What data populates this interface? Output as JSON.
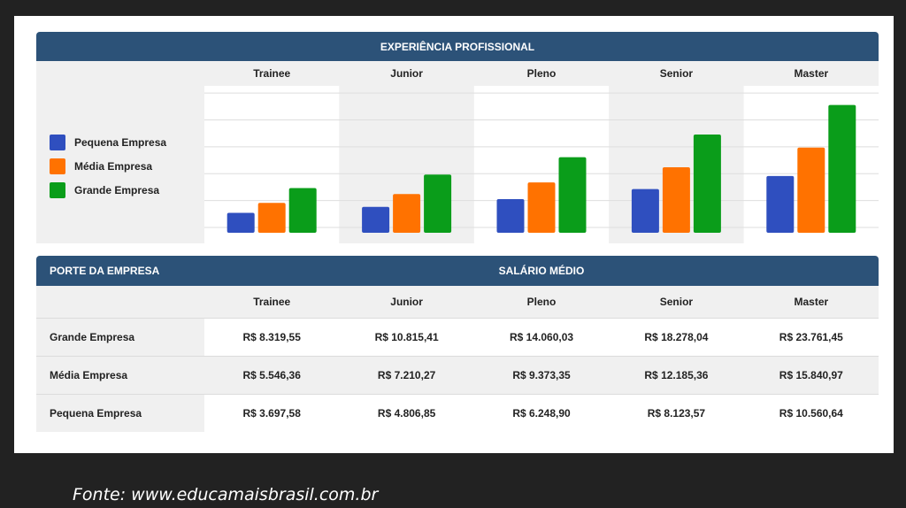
{
  "chart_header": "EXPERIÊNCIA PROFISSIONAL",
  "table_header": {
    "left": "PORTE DA EMPRESA",
    "right": "SALÁRIO MÉDIO"
  },
  "levels": [
    "Trainee",
    "Junior",
    "Pleno",
    "Senior",
    "Master"
  ],
  "chart_data": {
    "type": "bar",
    "title": "",
    "categories": [
      "Trainee",
      "Junior",
      "Pleno",
      "Senior",
      "Master"
    ],
    "series": [
      {
        "name": "Pequena Empresa",
        "color": "#2f4fbf",
        "values": [
          3697.58,
          4806.85,
          6248.9,
          8123.57,
          10560.64
        ]
      },
      {
        "name": "Média Empresa",
        "color": "#ff7200",
        "values": [
          5546.36,
          7210.27,
          9373.35,
          12185.36,
          15840.97
        ]
      },
      {
        "name": "Grande Empresa",
        "color": "#0a9d1a",
        "values": [
          8319.55,
          10815.41,
          14060.03,
          18278.04,
          23761.45
        ]
      }
    ],
    "ylim": [
      0,
      27000
    ],
    "grid": true,
    "legend": "left"
  },
  "table": {
    "rows": [
      {
        "label": "Grande Empresa",
        "values": [
          "R$ 8.319,55",
          "R$ 10.815,41",
          "R$ 14.060,03",
          "R$ 18.278,04",
          "R$ 23.761,45"
        ]
      },
      {
        "label": "Média Empresa",
        "values": [
          "R$ 5.546,36",
          "R$ 7.210,27",
          "R$ 9.373,35",
          "R$ 12.185,36",
          "R$ 15.840,97"
        ]
      },
      {
        "label": "Pequena Empresa",
        "values": [
          "R$ 3.697,58",
          "R$ 4.806,85",
          "R$ 6.248,90",
          "R$ 8.123,57",
          "R$ 10.560,64"
        ]
      }
    ]
  },
  "source": "Fonte: www.educamaisbrasil.com.br"
}
